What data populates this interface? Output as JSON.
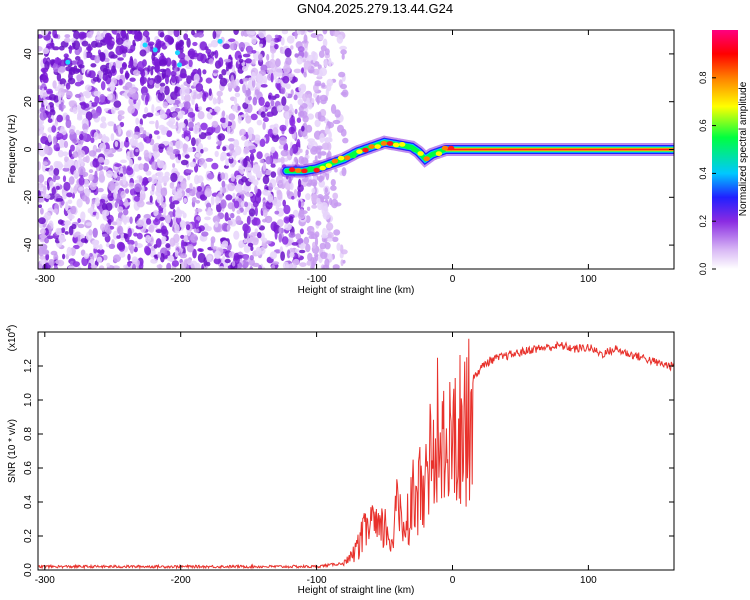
{
  "title": "GN04.2025.279.13.44.G24",
  "colors": {
    "snr_line": "#e8312b",
    "spectrogram_purple": "#7a1bd6",
    "ridge_peak": "#ff1a1a"
  },
  "chart_data": [
    {
      "type": "heatmap",
      "name": "spectrogram",
      "title": "GN04.2025.279.13.44.G24",
      "xlabel": "Height of straight line (km)",
      "ylabel": "Frequency (Hz)",
      "xlim": [
        -305,
        163
      ],
      "ylim": [
        -50,
        50
      ],
      "x_ticks": [
        -300,
        -200,
        -100,
        0,
        100
      ],
      "y_ticks": [
        -40,
        -20,
        0,
        20,
        40
      ],
      "colorbar": {
        "label": "Normalized spectral amplitude",
        "range": [
          0,
          1
        ],
        "ticks": [
          0.0,
          0.2,
          0.4,
          0.6,
          0.8
        ],
        "tick_labels": [
          "0.0",
          "0.2",
          "0.4",
          "0.6",
          "0.8"
        ],
        "colormap": [
          "#ffffff",
          "#d9b8f5",
          "#8a2be2",
          "#2020ff",
          "#00c8ff",
          "#00ff40",
          "#ffff00",
          "#ff8000",
          "#ff0000",
          "#ff0080"
        ]
      },
      "noise_extent_km": [
        -305,
        -90
      ],
      "ridge": {
        "x": [
          -122,
          -110,
          -100,
          -90,
          -80,
          -70,
          -60,
          -50,
          -40,
          -30,
          -25,
          -20,
          -15,
          -10,
          -5,
          0,
          20,
          60,
          100,
          163
        ],
        "y": [
          -9,
          -9,
          -8,
          -6,
          -4,
          -1,
          1,
          3,
          2,
          1,
          -1,
          -4,
          -2,
          -1,
          0,
          0,
          0,
          0,
          0,
          0
        ]
      }
    },
    {
      "type": "line",
      "name": "snr",
      "xlabel": "Height of straight line (km)",
      "ylabel": "SNR (10 * v/v)",
      "multiplier_label": "(x10",
      "multiplier_exponent": "4",
      "xlim": [
        -305,
        163
      ],
      "ylim": [
        0,
        1.4
      ],
      "x_ticks": [
        -300,
        -200,
        -100,
        0,
        100
      ],
      "y_ticks": [
        0.0,
        0.2,
        0.4,
        0.6,
        0.8,
        1.0,
        1.2
      ],
      "y_tick_labels": [
        "0.0",
        "0.2",
        "0.4",
        "0.6",
        "0.8",
        "1.0",
        "1.2"
      ],
      "series": [
        {
          "x": [
            -305,
            -200,
            -100,
            -80,
            -75,
            -70,
            -65,
            -60,
            -55,
            -50,
            -45,
            -40,
            -35,
            -30,
            -25,
            -20,
            -15,
            -10,
            -5,
            0,
            5,
            10,
            15,
            20,
            25,
            30,
            40,
            50,
            60,
            70,
            80,
            90,
            100,
            110,
            120,
            130,
            140,
            150,
            160,
            163
          ],
          "y": [
            0.02,
            0.02,
            0.02,
            0.04,
            0.08,
            0.15,
            0.25,
            0.35,
            0.25,
            0.3,
            0.2,
            0.45,
            0.3,
            0.5,
            0.55,
            0.7,
            0.8,
            0.65,
            0.85,
            0.85,
            0.95,
            1.05,
            1.12,
            1.18,
            1.22,
            1.24,
            1.26,
            1.28,
            1.3,
            1.31,
            1.32,
            1.3,
            1.31,
            1.27,
            1.3,
            1.27,
            1.25,
            1.22,
            1.2,
            1.2
          ]
        }
      ]
    }
  ]
}
